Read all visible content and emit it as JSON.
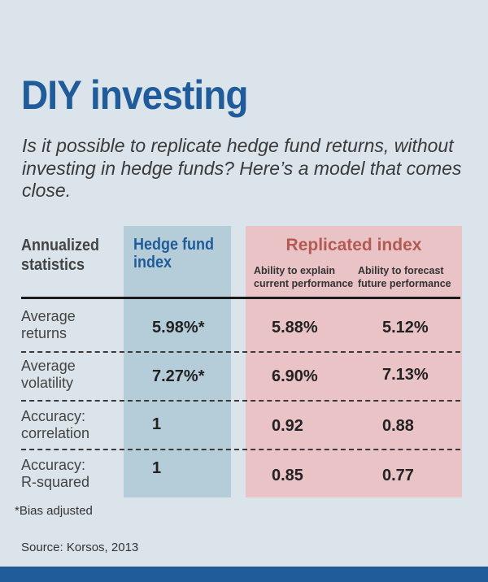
{
  "header": {
    "title": "DIY investing",
    "subtitle": "Is it possible to replicate hedge fund returns, without investing in hedge funds? Here’s a model that comes close."
  },
  "chart_data": {
    "type": "table",
    "row_header": "Annualized statistics",
    "columns": [
      {
        "label": "Hedge fund index"
      },
      {
        "label": "Ability to explain current performance",
        "group": "Replicated index"
      },
      {
        "label": "Ability to forecast future performance",
        "group": "Replicated index"
      }
    ],
    "group_label": "Replicated index",
    "rows": [
      {
        "label": "Average returns",
        "values": [
          "5.98%*",
          "5.88%",
          "5.12%"
        ]
      },
      {
        "label": "Average volatility",
        "values": [
          "7.27%*",
          "6.90%",
          "7.13%"
        ]
      },
      {
        "label": "Accuracy: correlation",
        "values": [
          "1",
          "0.92",
          "0.88"
        ]
      },
      {
        "label": "Accuracy: R-squared",
        "values": [
          "1",
          "0.85",
          "0.77"
        ]
      }
    ]
  },
  "labels": {
    "row_header_line1": "Annualized",
    "row_header_line2": "statistics",
    "hf_line1": "Hedge fund",
    "hf_line2": "index",
    "explain_line1": "Ability to explain",
    "explain_line2": "current performance",
    "forecast_line1": "Ability to forecast",
    "forecast_line2": "future performance",
    "rows": [
      {
        "line1": "Average",
        "line2": "returns"
      },
      {
        "line1": "Average",
        "line2": "volatility"
      },
      {
        "line1": "Accuracy:",
        "line2": "correlation"
      },
      {
        "line1": "Accuracy:",
        "line2": "R-squared"
      }
    ]
  },
  "footer": {
    "note": "*Bias adjusted",
    "source": "Source: Korsos, 2013"
  },
  "colors": {
    "title": "#1f5c99",
    "hedge_fund_column": "#b5cdd9",
    "replicated_column": "#eac3c7",
    "replicated_header": "#b35a52",
    "background": "#dbe4ea"
  }
}
